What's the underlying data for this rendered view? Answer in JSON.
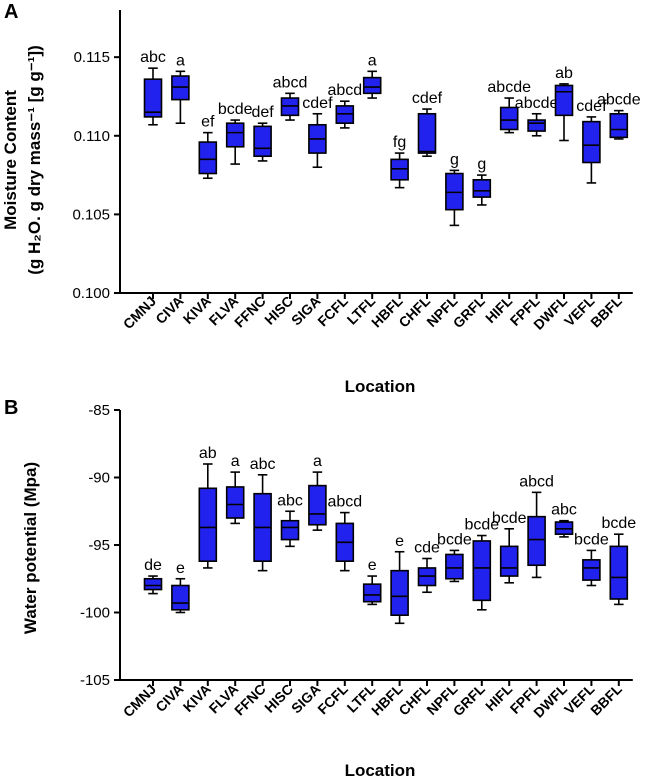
{
  "colors": {
    "box_fill": "#2222ee",
    "stroke": "#000000",
    "background": "#ffffff"
  },
  "chart_data": [
    {
      "panel": "A",
      "type": "boxplot",
      "ylabel_line1": "Moisture Content",
      "ylabel_line2": "(g H₂O. g dry mass⁻¹ [g g⁻¹])",
      "xlabel": "Location",
      "ylim": [
        0.1,
        0.118
      ],
      "yticks": [
        0.1,
        0.105,
        0.11,
        0.115
      ],
      "ytick_labels": [
        "0.100",
        "0.105",
        "0.110",
        "0.115"
      ],
      "categories": [
        "CMNJ",
        "CIVA",
        "KIVA",
        "FLVA",
        "FFNC",
        "HISC",
        "SIGA",
        "FCFL",
        "LTFL",
        "HBFL",
        "CHFL",
        "NPFL",
        "GRFL",
        "HIFL",
        "FPFL",
        "DWFL",
        "VEFL",
        "BBFL"
      ],
      "letters": [
        "abc",
        "a",
        "ef",
        "bcde",
        "def",
        "abcd",
        "cdef",
        "abcd",
        "a",
        "fg",
        "cdef",
        "g",
        "g",
        "abcde",
        "abcde",
        "ab",
        "cdef",
        "abcde"
      ],
      "boxes": [
        {
          "min": 0.1107,
          "q1": 0.1112,
          "median": 0.1115,
          "q3": 0.1136,
          "max": 0.1143
        },
        {
          "min": 0.1108,
          "q1": 0.1123,
          "median": 0.1131,
          "q3": 0.1138,
          "max": 0.1141
        },
        {
          "min": 0.1073,
          "q1": 0.1076,
          "median": 0.1085,
          "q3": 0.1096,
          "max": 0.1102
        },
        {
          "min": 0.1082,
          "q1": 0.1093,
          "median": 0.1102,
          "q3": 0.1108,
          "max": 0.111
        },
        {
          "min": 0.1084,
          "q1": 0.1087,
          "median": 0.1092,
          "q3": 0.1106,
          "max": 0.1108
        },
        {
          "min": 0.111,
          "q1": 0.1113,
          "median": 0.1119,
          "q3": 0.1124,
          "max": 0.1127
        },
        {
          "min": 0.108,
          "q1": 0.1089,
          "median": 0.1098,
          "q3": 0.1107,
          "max": 0.1114
        },
        {
          "min": 0.1105,
          "q1": 0.1108,
          "median": 0.1114,
          "q3": 0.1119,
          "max": 0.1122
        },
        {
          "min": 0.1124,
          "q1": 0.1127,
          "median": 0.1131,
          "q3": 0.1137,
          "max": 0.1141
        },
        {
          "min": 0.1067,
          "q1": 0.1072,
          "median": 0.1079,
          "q3": 0.1085,
          "max": 0.1089
        },
        {
          "min": 0.1087,
          "q1": 0.1089,
          "median": 0.109,
          "q3": 0.1114,
          "max": 0.1117
        },
        {
          "min": 0.1043,
          "q1": 0.1053,
          "median": 0.1064,
          "q3": 0.1076,
          "max": 0.1078
        },
        {
          "min": 0.1056,
          "q1": 0.1061,
          "median": 0.1065,
          "q3": 0.1072,
          "max": 0.1075
        },
        {
          "min": 0.1102,
          "q1": 0.1104,
          "median": 0.111,
          "q3": 0.1118,
          "max": 0.1124
        },
        {
          "min": 0.11,
          "q1": 0.1103,
          "median": 0.1108,
          "q3": 0.111,
          "max": 0.1114
        },
        {
          "min": 0.1097,
          "q1": 0.1113,
          "median": 0.1128,
          "q3": 0.1132,
          "max": 0.1133
        },
        {
          "min": 0.107,
          "q1": 0.1083,
          "median": 0.1094,
          "q3": 0.1109,
          "max": 0.1112
        },
        {
          "min": 0.1098,
          "q1": 0.1099,
          "median": 0.1104,
          "q3": 0.1114,
          "max": 0.1116
        }
      ]
    },
    {
      "panel": "B",
      "type": "boxplot",
      "ylabel_line1": "Water potential  (Mpa)",
      "xlabel": "Location",
      "ylim": [
        -105,
        -85
      ],
      "yticks": [
        -105,
        -100,
        -95,
        -90,
        -85
      ],
      "ytick_labels": [
        "-105",
        "-100",
        "-95",
        "-90",
        "-85"
      ],
      "categories": [
        "CMNJ",
        "CIVA",
        "KIVA",
        "FLVA",
        "FFNC",
        "HISC",
        "SIGA",
        "FCFL",
        "LTFL",
        "HBFL",
        "CHFL",
        "NPFL",
        "GRFL",
        "HIFL",
        "FPFL",
        "DWFL",
        "VEFL",
        "BBFL"
      ],
      "letters": [
        "de",
        "e",
        "ab",
        "a",
        "abc",
        "abc",
        "a",
        "abcd",
        "e",
        "e",
        "cde",
        "bcde",
        "bcde",
        "bcde",
        "abcd",
        "abc",
        "bcde",
        "bcde"
      ],
      "boxes": [
        {
          "min": -98.6,
          "q1": -98.3,
          "median": -98.0,
          "q3": -97.5,
          "max": -97.3
        },
        {
          "min": -100.0,
          "q1": -99.8,
          "median": -99.3,
          "q3": -98.0,
          "max": -97.5
        },
        {
          "min": -96.7,
          "q1": -96.2,
          "median": -93.7,
          "q3": -90.8,
          "max": -89.0
        },
        {
          "min": -93.4,
          "q1": -93.0,
          "median": -92.0,
          "q3": -90.7,
          "max": -89.6
        },
        {
          "min": -96.9,
          "q1": -96.2,
          "median": -93.7,
          "q3": -91.2,
          "max": -89.8
        },
        {
          "min": -95.1,
          "q1": -94.6,
          "median": -93.7,
          "q3": -93.2,
          "max": -92.5
        },
        {
          "min": -93.9,
          "q1": -93.5,
          "median": -92.7,
          "q3": -90.6,
          "max": -89.6
        },
        {
          "min": -96.9,
          "q1": -96.2,
          "median": -94.8,
          "q3": -93.4,
          "max": -92.6
        },
        {
          "min": -99.4,
          "q1": -99.2,
          "median": -98.7,
          "q3": -97.9,
          "max": -97.3
        },
        {
          "min": -100.8,
          "q1": -100.2,
          "median": -98.8,
          "q3": -96.9,
          "max": -95.5
        },
        {
          "min": -98.5,
          "q1": -98.0,
          "median": -97.3,
          "q3": -96.7,
          "max": -96.0
        },
        {
          "min": -97.7,
          "q1": -97.5,
          "median": -96.7,
          "q3": -95.7,
          "max": -95.4
        },
        {
          "min": -99.8,
          "q1": -99.1,
          "median": -96.7,
          "q3": -94.7,
          "max": -94.3
        },
        {
          "min": -97.8,
          "q1": -97.3,
          "median": -96.7,
          "q3": -95.1,
          "max": -93.8
        },
        {
          "min": -97.4,
          "q1": -96.5,
          "median": -94.6,
          "q3": -92.9,
          "max": -91.1
        },
        {
          "min": -94.4,
          "q1": -94.2,
          "median": -93.8,
          "q3": -93.3,
          "max": -93.2
        },
        {
          "min": -98.0,
          "q1": -97.6,
          "median": -96.7,
          "q3": -96.1,
          "max": -95.4
        },
        {
          "min": -99.4,
          "q1": -99.0,
          "median": -97.4,
          "q3": -95.1,
          "max": -94.2
        }
      ]
    }
  ]
}
